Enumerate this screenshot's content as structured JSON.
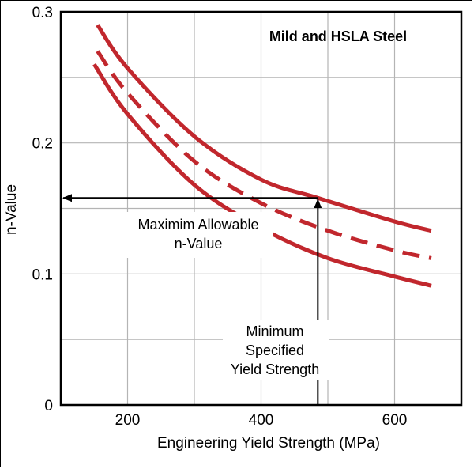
{
  "chart_data": {
    "type": "line",
    "title": "Mild and HSLA Steel",
    "xlabel": "Engineering Yield Strength (MPa)",
    "ylabel": "n-Value",
    "xlim": [
      100,
      700
    ],
    "ylim": [
      0,
      0.3
    ],
    "xticks": [
      200,
      400,
      600
    ],
    "xtick_labels": [
      "200",
      "400",
      "600"
    ],
    "yticks": [
      0,
      0.1,
      0.2,
      0.3
    ],
    "ytick_labels": [
      "0",
      "0.1",
      "0.2",
      "0.3"
    ],
    "grid": true,
    "grid_x_values": [
      200,
      300,
      400,
      500,
      600
    ],
    "grid_y_values": [
      0.05,
      0.1,
      0.15,
      0.2,
      0.25
    ],
    "series_color": "#c1272d",
    "series": [
      {
        "style": "solid",
        "x": [
          155,
          200,
          300,
          400,
          485,
          600,
          655
        ],
        "y": [
          0.29,
          0.257,
          0.205,
          0.172,
          0.158,
          0.14,
          0.133
        ]
      },
      {
        "style": "dashed",
        "x": [
          155,
          200,
          300,
          400,
          500,
          600,
          655
        ],
        "y": [
          0.27,
          0.238,
          0.186,
          0.154,
          0.133,
          0.118,
          0.112
        ]
      },
      {
        "style": "solid",
        "x": [
          150,
          200,
          300,
          400,
          500,
          600,
          655
        ],
        "y": [
          0.26,
          0.222,
          0.168,
          0.135,
          0.112,
          0.098,
          0.091
        ]
      }
    ],
    "annotations": {
      "max_n": {
        "text_line1": "Maximim Allowable",
        "text_line2": "n-Value",
        "x_from": 485,
        "x_to": 100,
        "y": 0.158
      },
      "min_ys": {
        "text_line1": "Minimum",
        "text_line2": "Specified",
        "text_line3": "Yield Strength",
        "x": 485,
        "y_from": 0,
        "y_to": 0.158
      }
    }
  }
}
